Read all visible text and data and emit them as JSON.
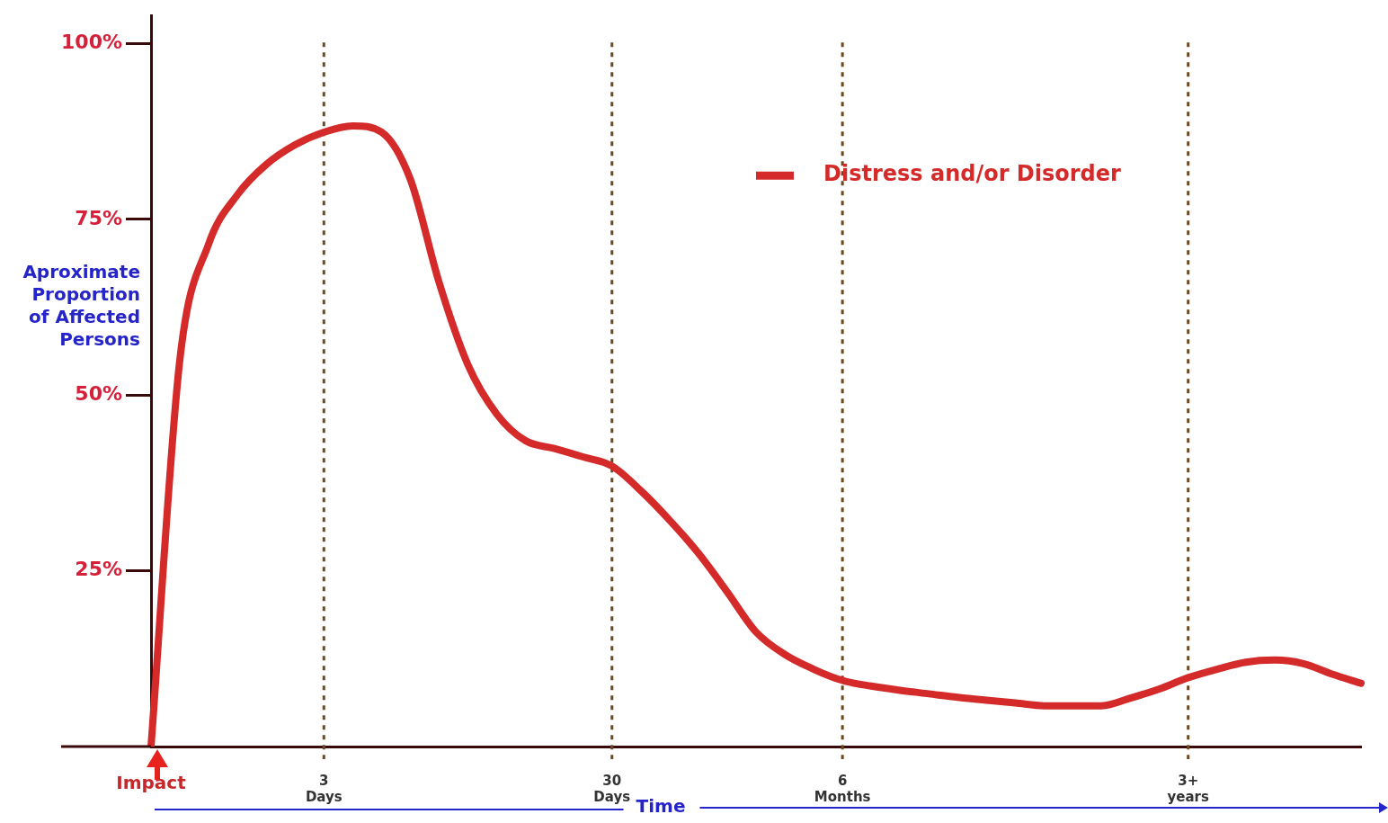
{
  "chart_data": {
    "type": "line",
    "xlabel": "Time",
    "ylabel": "Aproximate Proportion of Affected Persons",
    "categories": [
      "Impact",
      null,
      null,
      null,
      null,
      null,
      "3 Days",
      null,
      null,
      null,
      null,
      null,
      null,
      null,
      null,
      null,
      "30 Days",
      null,
      null,
      null,
      null,
      null,
      null,
      null,
      "6 Months",
      null,
      null,
      null,
      null,
      null,
      null,
      null,
      null,
      null,
      null,
      null,
      "3+ years",
      null,
      null,
      null,
      null,
      null,
      null
    ],
    "series": [
      {
        "name": "Distress and/or Disorder",
        "color": "#d42a2a",
        "values": [
          0,
          55,
          71.5,
          78.5,
          82.8,
          85.6,
          87.4,
          88.3,
          87.4,
          80.7,
          66,
          54.3,
          47.3,
          43.5,
          42.4,
          41.2,
          39.9,
          36.4,
          32.2,
          27.5,
          22,
          16.3,
          13.1,
          11,
          9.4,
          8.6,
          8,
          7.5,
          7,
          6.6,
          6.2,
          5.8,
          5.8,
          5.8,
          6.9,
          8.2,
          9.8,
          11,
          12,
          12.3,
          11.8,
          10.3,
          9
        ]
      }
    ],
    "ylim": [
      0,
      104
    ],
    "yticks": [
      {
        "value": 25,
        "label": "25%"
      },
      {
        "value": 50,
        "label": "50%"
      },
      {
        "value": 75,
        "label": "75%"
      },
      {
        "value": 100,
        "label": "100%"
      }
    ],
    "ref_lines": [
      {
        "axis": "x",
        "value": "3 Days",
        "color": "#6b4a22",
        "line_style": "dashed"
      },
      {
        "axis": "x",
        "value": "30 Days",
        "color": "#6b4a22",
        "line_style": "dashed"
      },
      {
        "axis": "x",
        "value": "6 Months",
        "color": "#6b4a22",
        "line_style": "dashed"
      },
      {
        "axis": "x",
        "value": "3+ years",
        "color": "#6b4a22",
        "line_style": "dashed"
      }
    ],
    "legend": "top right",
    "grid": false,
    "marker": "none",
    "line_style": "solid"
  }
}
